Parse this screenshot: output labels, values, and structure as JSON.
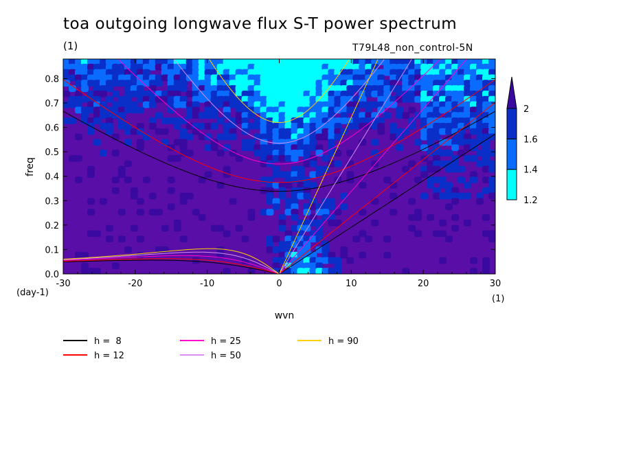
{
  "title": "toa outgoing longwave flux S-T power spectrum",
  "unit_top": "(1)",
  "run_label": "T79L48_non_control-5N",
  "colors": {
    "background": "#5a0ea8",
    "levels": [
      "#00ffff",
      "#0a6cff",
      "#0a2ec8",
      "#3a0aa0"
    ],
    "white": "#ffffff"
  },
  "chart_data": {
    "type": "heatmap",
    "title": "toa outgoing longwave flux S-T power spectrum",
    "xlabel": "wvn",
    "ylabel": "freq",
    "x_unit": "(1)",
    "y_unit": "(day-1)",
    "xlim": [
      -30,
      30
    ],
    "ylim": [
      0,
      0.88
    ],
    "x_ticks": [
      "-30",
      "-20",
      "-10",
      "0",
      "10",
      "20",
      "30"
    ],
    "x_tick_values": [
      -30,
      -20,
      -10,
      0,
      10,
      20,
      30
    ],
    "y_ticks": [
      "0.0",
      "0.1",
      "0.2",
      "0.3",
      "0.4",
      "0.5",
      "0.6",
      "0.7",
      "0.8"
    ],
    "y_tick_values": [
      0.0,
      0.1,
      0.2,
      0.3,
      0.4,
      0.5,
      0.6,
      0.7,
      0.8
    ],
    "colorbar": {
      "labels": [
        "1.2",
        "1.4",
        "1.6",
        "2"
      ],
      "values": [
        1.2,
        1.4,
        1.6,
        2.0
      ],
      "extend": "max"
    },
    "dispersion_curves": [
      {
        "name": "h =  8",
        "h": 8,
        "color": "#000000"
      },
      {
        "name": "h = 12",
        "h": 12,
        "color": "#ff0000"
      },
      {
        "name": "h = 25",
        "h": 25,
        "color": "#ff00c8"
      },
      {
        "name": "h = 50",
        "h": 50,
        "color": "#d68cf0"
      },
      {
        "name": "h = 90",
        "h": 90,
        "color": "#ffd000"
      }
    ]
  }
}
